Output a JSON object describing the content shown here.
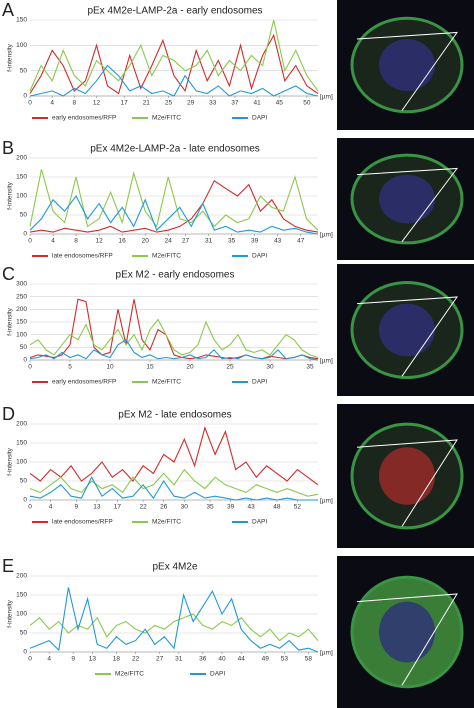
{
  "chart_data": [
    {
      "type": "line",
      "label": "A",
      "title": "pEx 4M2e-LAMP-2a - early endosomes",
      "ylabel": "f-intensity",
      "xlabel": "[µm]",
      "xlim": [
        0,
        52
      ],
      "ylim": [
        0,
        150
      ],
      "yticks": [
        0,
        50,
        100,
        150
      ],
      "xticks": [
        0,
        4,
        8,
        12,
        17,
        21,
        25,
        29,
        33,
        37,
        41,
        45,
        50
      ],
      "grid": true,
      "x": [
        0,
        2,
        4,
        6,
        8,
        10,
        12,
        14,
        16,
        18,
        20,
        22,
        24,
        26,
        28,
        30,
        32,
        34,
        36,
        38,
        40,
        42,
        44,
        46,
        48,
        50,
        52
      ],
      "series": [
        {
          "name": "early endosomes/RFP",
          "color": "#d42a2a",
          "values": [
            5,
            40,
            90,
            60,
            10,
            30,
            100,
            20,
            5,
            80,
            15,
            60,
            110,
            40,
            10,
            90,
            30,
            70,
            20,
            100,
            15,
            80,
            120,
            30,
            60,
            20,
            5
          ]
        },
        {
          "name": "M2e/FITC",
          "color": "#8cc84b",
          "values": [
            10,
            60,
            30,
            90,
            40,
            20,
            70,
            50,
            30,
            60,
            100,
            40,
            80,
            70,
            50,
            60,
            90,
            40,
            70,
            50,
            80,
            60,
            150,
            50,
            90,
            40,
            10
          ]
        },
        {
          "name": "DAPI",
          "color": "#1f9ad6",
          "values": [
            0,
            5,
            10,
            0,
            15,
            5,
            30,
            60,
            40,
            10,
            20,
            5,
            10,
            0,
            40,
            10,
            5,
            20,
            0,
            10,
            5,
            15,
            0,
            10,
            20,
            5,
            0
          ]
        }
      ]
    },
    {
      "type": "line",
      "label": "B",
      "title": "pEx 4M2e-LAMP-2a - late endosomes",
      "ylabel": "f-intensity",
      "xlabel": "[µm]",
      "xlim": [
        0,
        50
      ],
      "ylim": [
        0,
        200
      ],
      "yticks": [
        0,
        50,
        100,
        150,
        200
      ],
      "xticks": [
        0,
        4,
        8,
        12,
        16,
        20,
        24,
        27,
        31,
        35,
        39,
        43,
        47
      ],
      "grid": true,
      "x": [
        0,
        2,
        4,
        6,
        8,
        10,
        12,
        14,
        16,
        18,
        20,
        22,
        24,
        26,
        28,
        30,
        32,
        34,
        36,
        38,
        40,
        42,
        44,
        46,
        48,
        50
      ],
      "series": [
        {
          "name": "late endosomes/RFP",
          "color": "#d42a2a",
          "values": [
            5,
            10,
            5,
            15,
            10,
            5,
            10,
            20,
            5,
            10,
            15,
            5,
            10,
            20,
            40,
            80,
            140,
            120,
            100,
            130,
            60,
            90,
            40,
            20,
            10,
            5
          ]
        },
        {
          "name": "M2e/FITC",
          "color": "#8cc84b",
          "values": [
            20,
            170,
            60,
            30,
            150,
            20,
            40,
            110,
            30,
            160,
            60,
            20,
            150,
            40,
            30,
            60,
            20,
            50,
            30,
            40,
            100,
            70,
            60,
            150,
            40,
            10
          ]
        },
        {
          "name": "DAPI",
          "color": "#1f9ad6",
          "values": [
            10,
            40,
            90,
            60,
            100,
            40,
            80,
            30,
            70,
            20,
            90,
            10,
            40,
            70,
            20,
            80,
            10,
            20,
            5,
            10,
            5,
            20,
            10,
            15,
            5,
            0
          ]
        }
      ]
    },
    {
      "type": "line",
      "label": "C",
      "title": "pEx M2  - early endosomes",
      "ylabel": "f-intensity",
      "xlabel": "[µm]",
      "xlim": [
        0,
        36
      ],
      "ylim": [
        0,
        300
      ],
      "yticks": [
        0,
        50,
        100,
        150,
        200,
        250,
        300
      ],
      "xticks": [
        0,
        5,
        10,
        15,
        20,
        25,
        30,
        35
      ],
      "grid": true,
      "x": [
        0,
        1,
        2,
        3,
        4,
        5,
        6,
        7,
        8,
        9,
        10,
        11,
        12,
        13,
        14,
        15,
        16,
        17,
        18,
        19,
        20,
        21,
        22,
        23,
        24,
        25,
        26,
        27,
        28,
        29,
        30,
        31,
        32,
        33,
        34,
        35,
        36
      ],
      "series": [
        {
          "name": "early endosomes/RFP",
          "color": "#d42a2a",
          "values": [
            10,
            20,
            15,
            10,
            20,
            60,
            240,
            230,
            50,
            20,
            30,
            200,
            60,
            240,
            80,
            40,
            120,
            100,
            20,
            10,
            5,
            10,
            20,
            15,
            10,
            5,
            10,
            20,
            10,
            5,
            15,
            10,
            5,
            10,
            20,
            10,
            5
          ]
        },
        {
          "name": "M2e/FITC",
          "color": "#8cc84b",
          "values": [
            60,
            80,
            40,
            20,
            60,
            100,
            80,
            140,
            60,
            40,
            80,
            120,
            60,
            100,
            40,
            120,
            160,
            100,
            40,
            20,
            30,
            60,
            150,
            80,
            40,
            60,
            100,
            40,
            30,
            40,
            20,
            60,
            100,
            80,
            40,
            20,
            10
          ]
        },
        {
          "name": "DAPI",
          "color": "#1f9ad6",
          "values": [
            5,
            10,
            20,
            5,
            30,
            10,
            20,
            5,
            40,
            20,
            10,
            60,
            80,
            30,
            10,
            20,
            5,
            10,
            5,
            10,
            20,
            5,
            10,
            40,
            5,
            10,
            5,
            20,
            10,
            5,
            10,
            40,
            5,
            10,
            20,
            5,
            0
          ]
        }
      ]
    },
    {
      "type": "line",
      "label": "D",
      "title": "pEx M2 - late endosomes",
      "ylabel": "f-intensity",
      "xlabel": "[µm]",
      "xlim": [
        0,
        56
      ],
      "ylim": [
        0,
        200
      ],
      "yticks": [
        0,
        50,
        100,
        150,
        200
      ],
      "xticks": [
        0,
        4,
        9,
        13,
        17,
        22,
        26,
        30,
        35,
        39,
        43,
        48,
        52
      ],
      "grid": true,
      "x": [
        0,
        2,
        4,
        6,
        8,
        10,
        12,
        14,
        16,
        18,
        20,
        22,
        24,
        26,
        28,
        30,
        32,
        34,
        36,
        38,
        40,
        42,
        44,
        46,
        48,
        50,
        52,
        54,
        56
      ],
      "series": [
        {
          "name": "late endosomes/RFP",
          "color": "#d42a2a",
          "values": [
            70,
            50,
            80,
            60,
            90,
            50,
            70,
            100,
            60,
            80,
            50,
            90,
            70,
            120,
            100,
            160,
            90,
            190,
            120,
            180,
            80,
            100,
            60,
            90,
            70,
            50,
            80,
            60,
            40
          ]
        },
        {
          "name": "M2e/FITC",
          "color": "#8cc84b",
          "values": [
            30,
            20,
            40,
            60,
            30,
            20,
            50,
            30,
            40,
            20,
            60,
            30,
            40,
            70,
            40,
            80,
            50,
            30,
            60,
            40,
            30,
            20,
            40,
            30,
            20,
            30,
            20,
            10,
            15
          ]
        },
        {
          "name": "DAPI",
          "color": "#1f9ad6",
          "values": [
            10,
            5,
            20,
            40,
            10,
            5,
            60,
            10,
            30,
            5,
            10,
            40,
            5,
            50,
            10,
            5,
            20,
            5,
            10,
            5,
            0,
            5,
            0,
            5,
            0,
            5,
            0,
            0,
            0
          ]
        }
      ]
    },
    {
      "type": "line",
      "label": "E",
      "title": "pEx 4M2e",
      "ylabel": "f-intensity",
      "xlabel": "[µm]",
      "xlim": [
        0,
        60
      ],
      "ylim": [
        0,
        200
      ],
      "yticks": [
        0,
        50,
        100,
        150,
        200
      ],
      "xticks": [
        0,
        4,
        9,
        13,
        18,
        22,
        27,
        31,
        36,
        40,
        44,
        49,
        53,
        58
      ],
      "grid": true,
      "x": [
        0,
        2,
        4,
        6,
        8,
        10,
        12,
        14,
        16,
        18,
        20,
        22,
        24,
        26,
        28,
        30,
        32,
        34,
        36,
        38,
        40,
        42,
        44,
        46,
        48,
        50,
        52,
        54,
        56,
        58,
        60
      ],
      "series": [
        {
          "name": "M2e/FITC",
          "color": "#8cc84b",
          "values": [
            70,
            90,
            60,
            80,
            50,
            70,
            60,
            90,
            40,
            70,
            80,
            60,
            50,
            70,
            60,
            80,
            90,
            100,
            70,
            60,
            80,
            70,
            90,
            60,
            40,
            60,
            30,
            50,
            40,
            60,
            30
          ]
        },
        {
          "name": "DAPI",
          "color": "#1f9ad6",
          "values": [
            10,
            20,
            30,
            5,
            170,
            60,
            140,
            20,
            10,
            40,
            20,
            30,
            60,
            20,
            40,
            10,
            150,
            80,
            120,
            160,
            100,
            140,
            60,
            30,
            10,
            20,
            10,
            30,
            5,
            10,
            0
          ]
        }
      ]
    }
  ]
}
